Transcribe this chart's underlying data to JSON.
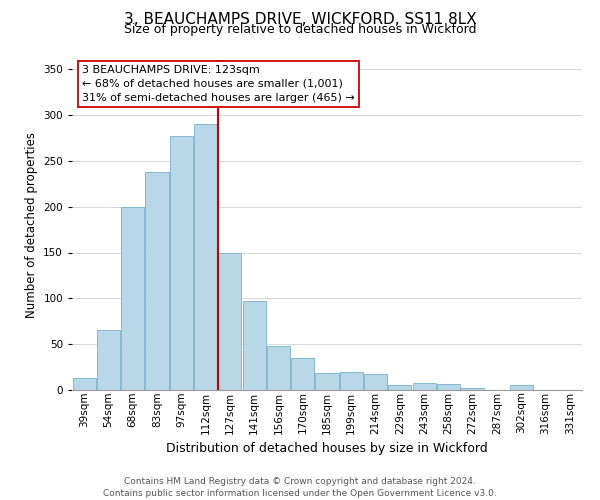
{
  "title": "3, BEAUCHAMPS DRIVE, WICKFORD, SS11 8LX",
  "subtitle": "Size of property relative to detached houses in Wickford",
  "xlabel": "Distribution of detached houses by size in Wickford",
  "ylabel": "Number of detached properties",
  "bar_labels": [
    "39sqm",
    "54sqm",
    "68sqm",
    "83sqm",
    "97sqm",
    "112sqm",
    "127sqm",
    "141sqm",
    "156sqm",
    "170sqm",
    "185sqm",
    "199sqm",
    "214sqm",
    "229sqm",
    "243sqm",
    "258sqm",
    "272sqm",
    "287sqm",
    "302sqm",
    "316sqm",
    "331sqm"
  ],
  "bar_values": [
    13,
    65,
    200,
    238,
    277,
    290,
    150,
    97,
    48,
    35,
    19,
    20,
    18,
    5,
    8,
    7,
    2,
    0,
    5,
    0,
    0
  ],
  "bar_color": "#b8d8e8",
  "bar_edgecolor": "#7ab0cc",
  "vline_color": "#cc0000",
  "vline_index": 6,
  "ylim": [
    0,
    360
  ],
  "yticks": [
    0,
    50,
    100,
    150,
    200,
    250,
    300,
    350
  ],
  "annotation_title": "3 BEAUCHAMPS DRIVE: 123sqm",
  "annotation_line1": "← 68% of detached houses are smaller (1,001)",
  "annotation_line2": "31% of semi-detached houses are larger (465) →",
  "annotation_box_color": "#ffffff",
  "annotation_box_edgecolor": "#cc0000",
  "footer1": "Contains HM Land Registry data © Crown copyright and database right 2024.",
  "footer2": "Contains public sector information licensed under the Open Government Licence v3.0.",
  "title_fontsize": 11,
  "subtitle_fontsize": 9,
  "xlabel_fontsize": 9,
  "ylabel_fontsize": 8.5,
  "tick_fontsize": 7.5,
  "annotation_fontsize": 8,
  "footer_fontsize": 6.5
}
